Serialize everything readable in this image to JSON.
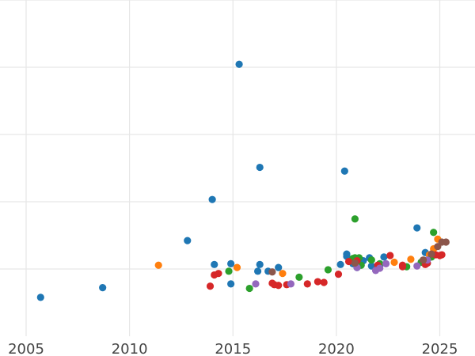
{
  "chart_data": {
    "type": "scatter",
    "title": "",
    "xlabel": "",
    "ylabel": "",
    "xlim": [
      2004.0,
      2026.8
    ],
    "ylim": [
      0,
      450
    ],
    "grid": true,
    "x_ticks": [
      2005,
      2010,
      2015,
      2020,
      2025
    ],
    "x_tick_labels": [
      "2005",
      "2010",
      "2015",
      "2020",
      "2025"
    ],
    "y_grid_values": [
      90,
      180,
      270,
      360,
      450
    ],
    "series": [
      {
        "color": "#1f77b4",
        "points": [
          [
            2005.7,
            52
          ],
          [
            2008.7,
            65
          ],
          [
            2012.8,
            128
          ],
          [
            2014.0,
            183
          ],
          [
            2014.1,
            96
          ],
          [
            2014.9,
            97
          ],
          [
            2014.9,
            70
          ],
          [
            2015.3,
            364
          ],
          [
            2016.2,
            87
          ],
          [
            2016.3,
            226
          ],
          [
            2016.3,
            96
          ],
          [
            2016.7,
            87
          ],
          [
            2017.2,
            92
          ],
          [
            2020.2,
            96
          ],
          [
            2020.4,
            221
          ],
          [
            2020.5,
            107
          ],
          [
            2020.5,
            110
          ],
          [
            2020.8,
            97
          ],
          [
            2021.0,
            92
          ],
          [
            2021.3,
            101
          ],
          [
            2021.6,
            105
          ],
          [
            2021.7,
            94
          ],
          [
            2022.1,
            95
          ],
          [
            2022.3,
            106
          ],
          [
            2023.9,
            145
          ],
          [
            2024.2,
            100
          ],
          [
            2024.3,
            112
          ],
          [
            2024.4,
            98
          ]
        ]
      },
      {
        "color": "#ff7f0e",
        "points": [
          [
            2011.4,
            95
          ],
          [
            2015.2,
            92
          ],
          [
            2017.4,
            84
          ],
          [
            2022.8,
            99
          ],
          [
            2023.6,
            103
          ],
          [
            2024.5,
            109
          ],
          [
            2024.7,
            117
          ],
          [
            2024.9,
            130
          ]
        ]
      },
      {
        "color": "#2ca02c",
        "points": [
          [
            2014.8,
            87
          ],
          [
            2015.8,
            64
          ],
          [
            2018.2,
            79
          ],
          [
            2019.6,
            89
          ],
          [
            2020.8,
            104
          ],
          [
            2020.9,
            105
          ],
          [
            2020.9,
            157
          ],
          [
            2021.0,
            101
          ],
          [
            2021.1,
            105
          ],
          [
            2021.2,
            95
          ],
          [
            2021.7,
            102
          ],
          [
            2022.1,
            97
          ],
          [
            2023.4,
            93
          ],
          [
            2024.1,
            99
          ],
          [
            2024.6,
            106
          ],
          [
            2024.7,
            139
          ]
        ]
      },
      {
        "color": "#d62728",
        "points": [
          [
            2013.9,
            67
          ],
          [
            2014.1,
            82
          ],
          [
            2014.3,
            84
          ],
          [
            2016.9,
            71
          ],
          [
            2017.0,
            69
          ],
          [
            2017.2,
            68
          ],
          [
            2017.6,
            69
          ],
          [
            2018.6,
            70
          ],
          [
            2019.1,
            73
          ],
          [
            2019.4,
            72
          ],
          [
            2020.1,
            83
          ],
          [
            2020.6,
            100
          ],
          [
            2021.0,
            101
          ],
          [
            2022.0,
            95
          ],
          [
            2022.6,
            108
          ],
          [
            2023.2,
            93
          ],
          [
            2023.2,
            95
          ],
          [
            2024.3,
            96
          ],
          [
            2024.4,
            98
          ],
          [
            2024.8,
            109
          ],
          [
            2025.1,
            109
          ],
          [
            2025.0,
            108
          ]
        ]
      },
      {
        "color": "#9467bd",
        "points": [
          [
            2016.1,
            70
          ],
          [
            2017.8,
            70
          ],
          [
            2021.0,
            92
          ],
          [
            2021.9,
            88
          ],
          [
            2022.1,
            91
          ],
          [
            2022.4,
            97
          ],
          [
            2023.9,
            94
          ],
          [
            2024.4,
            102
          ]
        ]
      },
      {
        "color": "#8c564b",
        "points": [
          [
            2016.9,
            86
          ],
          [
            2020.9,
            98
          ],
          [
            2024.2,
            102
          ],
          [
            2024.6,
            110
          ],
          [
            2024.9,
            120
          ],
          [
            2025.1,
            126
          ],
          [
            2025.3,
            126
          ]
        ]
      }
    ]
  }
}
